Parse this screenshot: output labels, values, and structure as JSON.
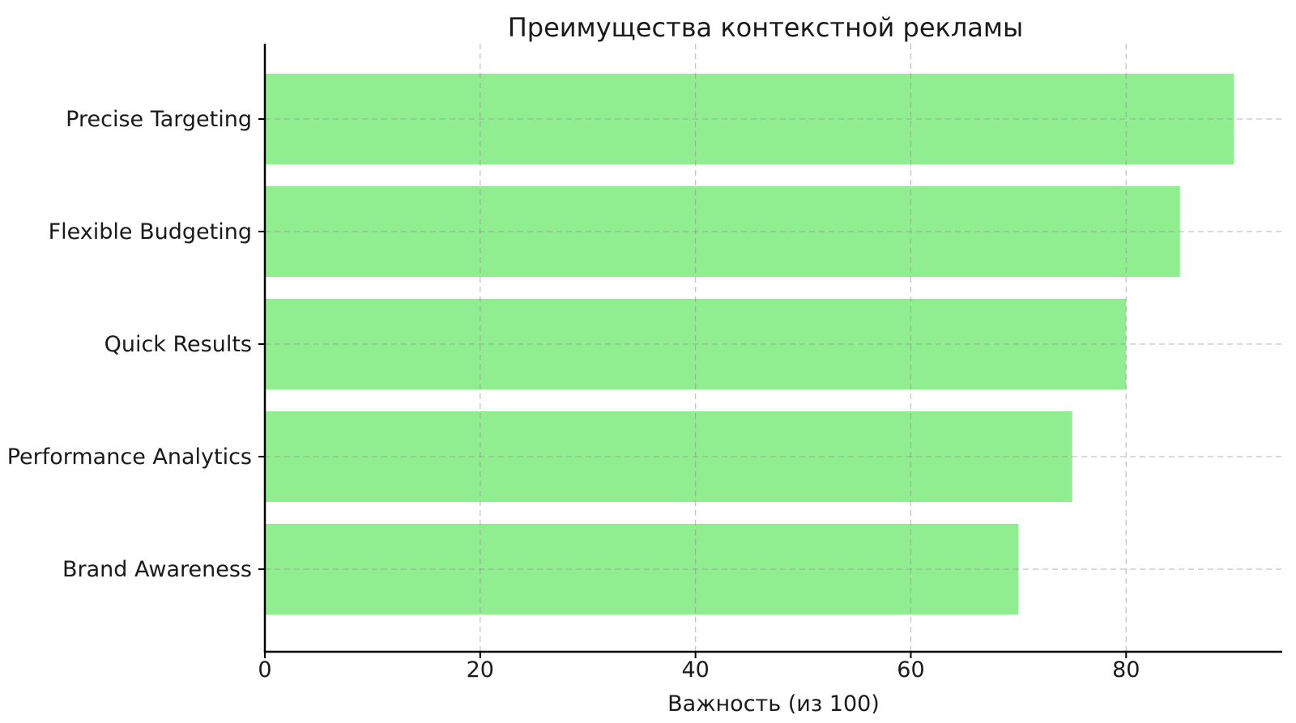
{
  "chart_data": {
    "type": "bar",
    "orientation": "horizontal",
    "title": "Преимущества контекстной рекламы",
    "xlabel": "Важность (из 100)",
    "ylabel": "",
    "categories": [
      "Precise Targeting",
      "Flexible Budgeting",
      "Quick Results",
      "Performance Analytics",
      "Brand Awareness"
    ],
    "values": [
      90,
      85,
      80,
      75,
      70
    ],
    "xticks": [
      0,
      20,
      40,
      60,
      80
    ],
    "xtick_labels": [
      "0",
      "20",
      "40",
      "60",
      "80"
    ],
    "xlim": [
      0,
      94.5
    ],
    "grid": "dashed",
    "legend": "none",
    "colors": {
      "bar": "#90EE90",
      "grid": "#8c8c8c",
      "spine": "#000000",
      "text": "#1a1a1a",
      "background": "#ffffff"
    }
  }
}
